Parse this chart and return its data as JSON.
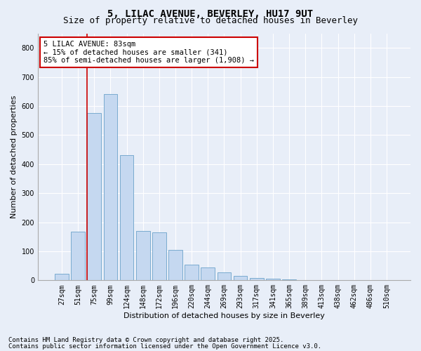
{
  "title": "5, LILAC AVENUE, BEVERLEY, HU17 9UT",
  "subtitle": "Size of property relative to detached houses in Beverley",
  "xlabel": "Distribution of detached houses by size in Beverley",
  "ylabel": "Number of detached properties",
  "bar_color": "#c5d8f0",
  "bar_edge_color": "#7aabcf",
  "categories": [
    "27sqm",
    "51sqm",
    "75sqm",
    "99sqm",
    "124sqm",
    "148sqm",
    "172sqm",
    "196sqm",
    "220sqm",
    "244sqm",
    "269sqm",
    "293sqm",
    "317sqm",
    "341sqm",
    "365sqm",
    "389sqm",
    "413sqm",
    "438sqm",
    "462sqm",
    "486sqm",
    "510sqm"
  ],
  "values": [
    22,
    168,
    575,
    640,
    430,
    170,
    165,
    105,
    55,
    45,
    28,
    15,
    8,
    5,
    3,
    2,
    2,
    1,
    1,
    0,
    2
  ],
  "ylim": [
    0,
    850
  ],
  "yticks": [
    0,
    100,
    200,
    300,
    400,
    500,
    600,
    700,
    800
  ],
  "red_line_x": 2.0,
  "annotation_text": "5 LILAC AVENUE: 83sqm\n← 15% of detached houses are smaller (341)\n85% of semi-detached houses are larger (1,908) →",
  "annotation_box_color": "#ffffff",
  "annotation_box_edge": "#cc0000",
  "red_line_color": "#cc0000",
  "footer_line1": "Contains HM Land Registry data © Crown copyright and database right 2025.",
  "footer_line2": "Contains public sector information licensed under the Open Government Licence v3.0.",
  "background_color": "#e8eef8",
  "plot_background": "#e8eef8",
  "grid_color": "#ffffff",
  "title_fontsize": 10,
  "subtitle_fontsize": 9,
  "ylabel_fontsize": 8,
  "xlabel_fontsize": 8,
  "tick_fontsize": 7,
  "footer_fontsize": 6.5,
  "annotation_fontsize": 7.5
}
